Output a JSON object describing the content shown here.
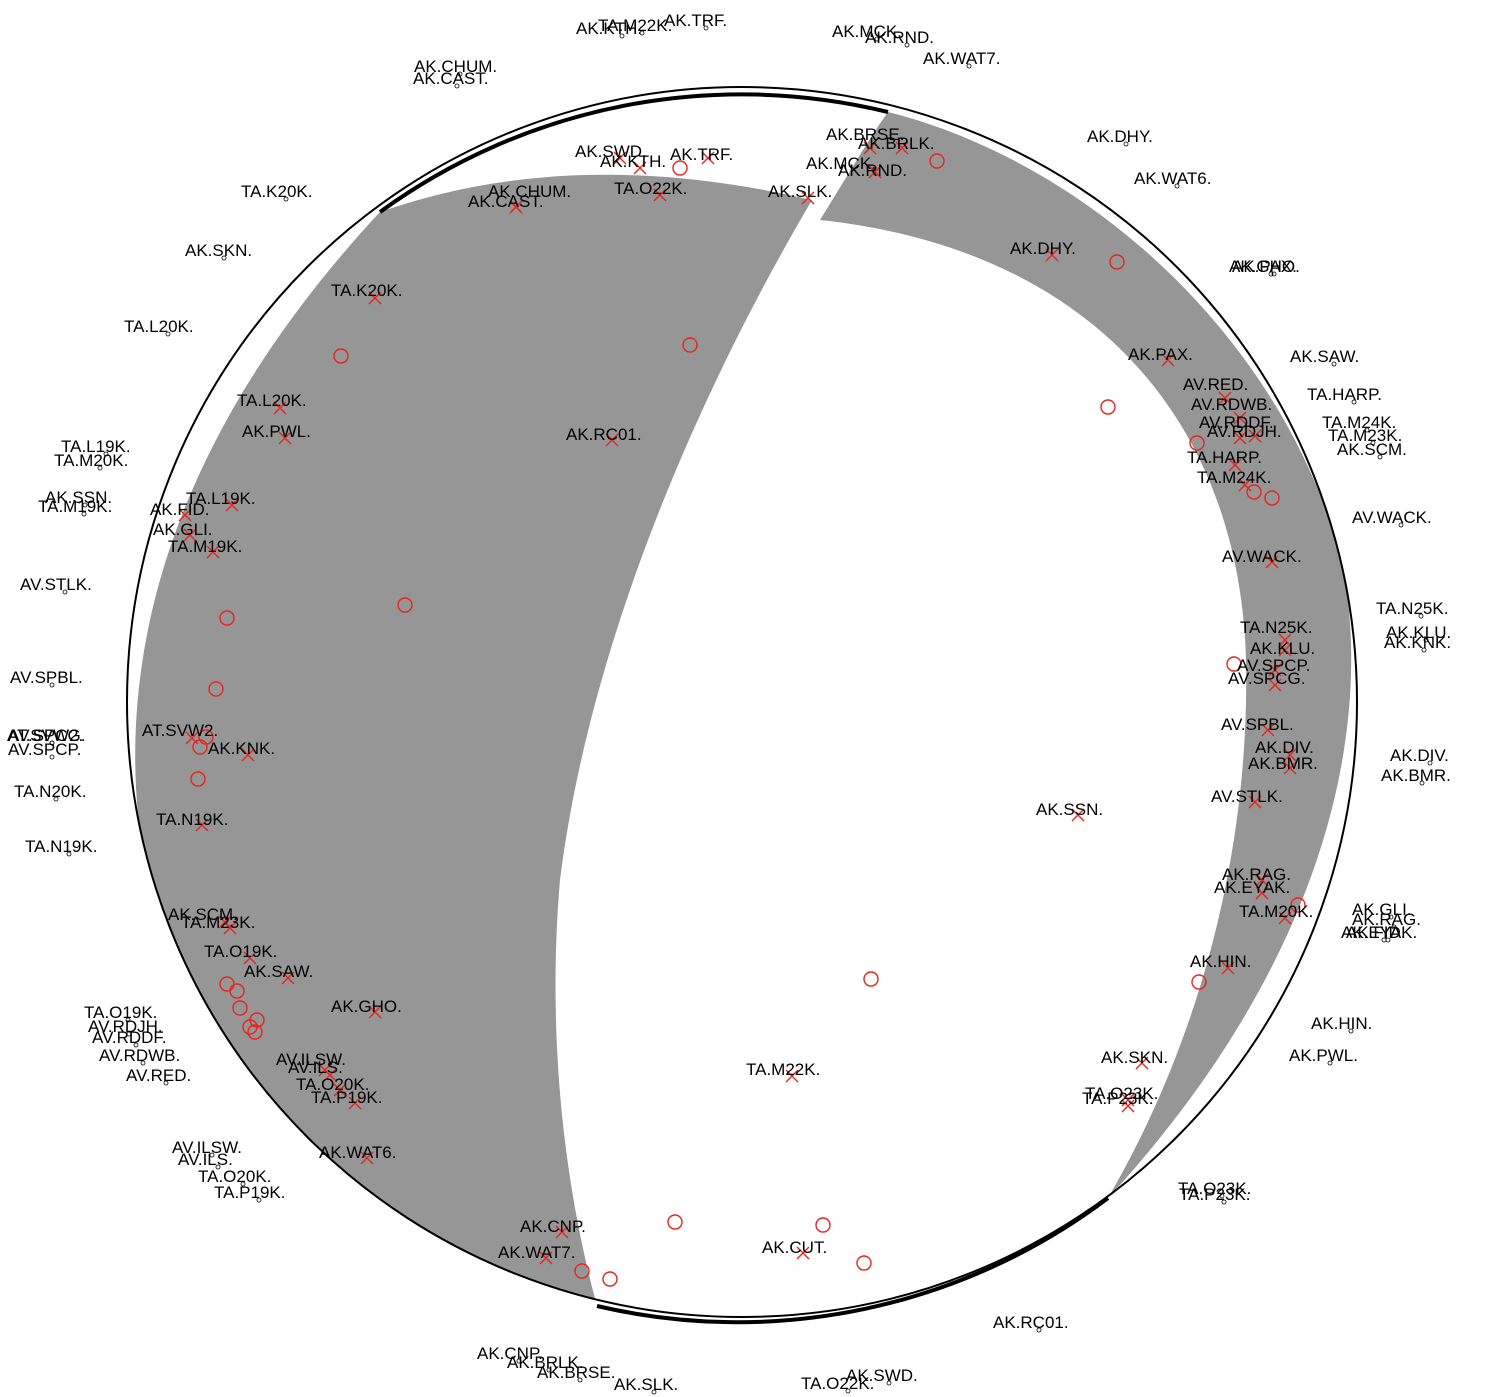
{
  "colors": {
    "background": "#ffffff",
    "compressional_fill": "#969696",
    "outline": "#000000",
    "polarity_marks": "#e8231c",
    "text": "#000000"
  },
  "legend_symbols": {
    "x_mark": "cross-icon",
    "o_mark": "circle-icon",
    "station_dot": "small-circle-icon"
  },
  "sphere_labels": [
    {
      "text": "AK.SWD."
    },
    {
      "text": "AK.KTH."
    },
    {
      "text": "AK.TRF."
    },
    {
      "text": "TA.O22K."
    },
    {
      "text": "AK.CHUM."
    },
    {
      "text": "AK.CAST."
    },
    {
      "text": "AK.SLK."
    },
    {
      "text": "AK.BRSE."
    },
    {
      "text": "AK.BRLK."
    },
    {
      "text": "AK.MCK."
    },
    {
      "text": "AK.RND."
    },
    {
      "text": "TA.K20K."
    },
    {
      "text": "AK.DHY."
    },
    {
      "text": "AK.PAX."
    },
    {
      "text": "AV.RED."
    },
    {
      "text": "AV.RDWB."
    },
    {
      "text": "AV.RDDF."
    },
    {
      "text": "AV.RDJH."
    },
    {
      "text": "TA.HARP."
    },
    {
      "text": "TA.M24K."
    },
    {
      "text": "TA.L20K."
    },
    {
      "text": "AK.PWL."
    },
    {
      "text": "AK.RC01."
    },
    {
      "text": "TA.L19K."
    },
    {
      "text": "AK.FID."
    },
    {
      "text": "AK.GLI."
    },
    {
      "text": "TA.M19K."
    },
    {
      "text": "AV.WACK."
    },
    {
      "text": "TA.N25K."
    },
    {
      "text": "AK.KLU."
    },
    {
      "text": "AV.SPCP."
    },
    {
      "text": "AV.SPCG."
    },
    {
      "text": "AV.SPBL."
    },
    {
      "text": "AK.DIV."
    },
    {
      "text": "AK.BMR."
    },
    {
      "text": "AT.SVW2."
    },
    {
      "text": "AK.KNK."
    },
    {
      "text": "AV.STLK."
    },
    {
      "text": "AK.SSN."
    },
    {
      "text": "TA.N19K."
    },
    {
      "text": "AK.RAG."
    },
    {
      "text": "AK.EYAK."
    },
    {
      "text": "TA.M20K."
    },
    {
      "text": "AK.SCM."
    },
    {
      "text": "TA.M23K."
    },
    {
      "text": "TA.O19K."
    },
    {
      "text": "AK.SAW."
    },
    {
      "text": "AK.HIN."
    },
    {
      "text": "AK.GHO."
    },
    {
      "text": "AK.SKN."
    },
    {
      "text": "AV.ILSW."
    },
    {
      "text": "AV.ILS."
    },
    {
      "text": "TA.O20K."
    },
    {
      "text": "TA.M22K."
    },
    {
      "text": "TA.P19K."
    },
    {
      "text": "TA.O23K."
    },
    {
      "text": "TA.P23K."
    },
    {
      "text": "AK.WAT6."
    },
    {
      "text": "AK.CNP."
    },
    {
      "text": "AK.WAT7."
    },
    {
      "text": "AK.CUT."
    }
  ],
  "outer_labels": [
    {
      "text": "TA.M22K."
    },
    {
      "text": "AK.KTH."
    },
    {
      "text": "AK.TRF."
    },
    {
      "text": "AK.MCK."
    },
    {
      "text": "AK.RND."
    },
    {
      "text": "AK.WAT7."
    },
    {
      "text": "AK.CHUM."
    },
    {
      "text": "AK.CAST."
    },
    {
      "text": "AK.DHY."
    },
    {
      "text": "AK.WAT6."
    },
    {
      "text": "TA.K20K."
    },
    {
      "text": "AK.SKN."
    },
    {
      "text": "AK.GHO."
    },
    {
      "text": "AK.PAX."
    },
    {
      "text": "TA.L20K."
    },
    {
      "text": "AK.SAW."
    },
    {
      "text": "TA.HARP."
    },
    {
      "text": "TA.M24K."
    },
    {
      "text": "TA.M23K."
    },
    {
      "text": "AK.SCM."
    },
    {
      "text": "TA.L19K."
    },
    {
      "text": "TA.M20K."
    },
    {
      "text": "AK.SSN."
    },
    {
      "text": "TA.M19K."
    },
    {
      "text": "AV.WACK."
    },
    {
      "text": "AV.STLK."
    },
    {
      "text": "TA.N25K."
    },
    {
      "text": "AK.KLU."
    },
    {
      "text": "AK.KNK."
    },
    {
      "text": "AV.SPBL."
    },
    {
      "text": "AT.SVW2."
    },
    {
      "text": "AV.SPCG."
    },
    {
      "text": "AV.SPCP."
    },
    {
      "text": "AK.DIV."
    },
    {
      "text": "AK.BMR."
    },
    {
      "text": "TA.N20K."
    },
    {
      "text": "TA.N19K."
    },
    {
      "text": "AK.GLI."
    },
    {
      "text": "AK.RAG."
    },
    {
      "text": "AK.FID."
    },
    {
      "text": "AK.EYAK."
    },
    {
      "text": "AK.HIN."
    },
    {
      "text": "TA.O19K."
    },
    {
      "text": "AV.RDJH."
    },
    {
      "text": "AV.RDDF."
    },
    {
      "text": "AK.PWL."
    },
    {
      "text": "AV.RDWB."
    },
    {
      "text": "AV.RED."
    },
    {
      "text": "AV.ILSW."
    },
    {
      "text": "AV.ILS."
    },
    {
      "text": "TA.O20K."
    },
    {
      "text": "TA.P19K."
    },
    {
      "text": "TA.O23K."
    },
    {
      "text": "TA.P23K."
    },
    {
      "text": "AK.RC01."
    },
    {
      "text": "AK.CNP."
    },
    {
      "text": "AK.BRLK."
    },
    {
      "text": "AK.BRSE."
    },
    {
      "text": "AK.SLK."
    },
    {
      "text": "TA.O22K."
    },
    {
      "text": "AK.SWD."
    }
  ]
}
